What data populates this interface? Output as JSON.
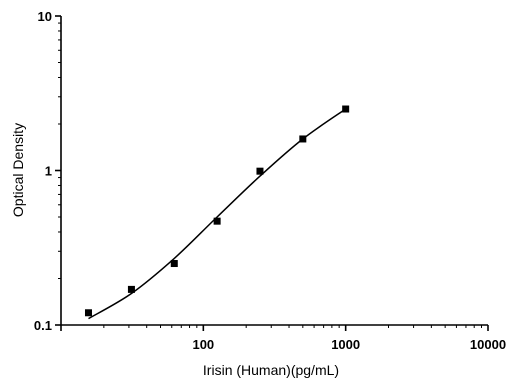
{
  "chart_data": {
    "type": "scatter",
    "title": "",
    "xlabel": "Irisin (Human)(pg/mL)",
    "ylabel": "Optical Density",
    "x_scale": "log",
    "y_scale": "log",
    "xlim": [
      10,
      10000
    ],
    "ylim": [
      0.1,
      10
    ],
    "x_ticks": [
      "100",
      "1000",
      "10000"
    ],
    "y_ticks": [
      "0.1",
      "1",
      "10"
    ],
    "grid": false,
    "series": [
      {
        "marker": "square",
        "color": "#000000",
        "points": [
          {
            "x": 15.6,
            "y": 0.12
          },
          {
            "x": 31.25,
            "y": 0.17
          },
          {
            "x": 62.5,
            "y": 0.25
          },
          {
            "x": 125,
            "y": 0.47
          },
          {
            "x": 250,
            "y": 0.99
          },
          {
            "x": 500,
            "y": 1.6
          },
          {
            "x": 1000,
            "y": 2.5
          }
        ]
      }
    ],
    "fit_curve": {
      "type": "4PL",
      "color": "#000000",
      "points": [
        {
          "x": 15.6,
          "y": 0.11
        },
        {
          "x": 31.25,
          "y": 0.16
        },
        {
          "x": 62.5,
          "y": 0.27
        },
        {
          "x": 125,
          "y": 0.5
        },
        {
          "x": 250,
          "y": 0.92
        },
        {
          "x": 500,
          "y": 1.6
        },
        {
          "x": 1000,
          "y": 2.5
        }
      ]
    }
  }
}
